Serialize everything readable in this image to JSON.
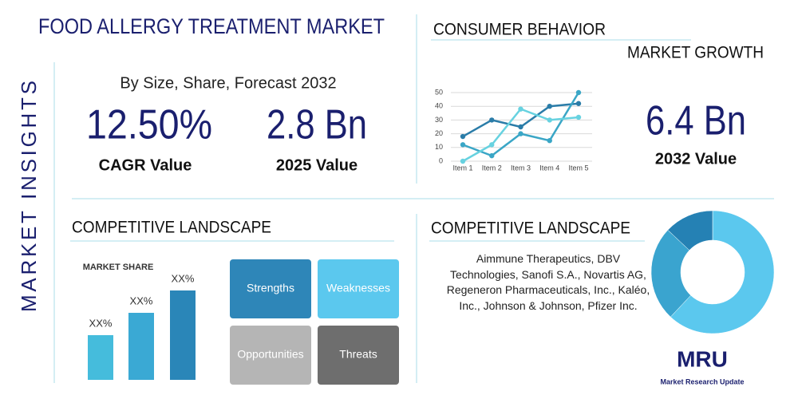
{
  "header": {
    "title": "FOOD ALLERGY TREATMENT MARKET",
    "side_label": "MARKET INSIGHTS",
    "subtitle": "By Size, Share, Forecast 2032"
  },
  "stats": [
    {
      "value": "12.50%",
      "label": "CAGR Value"
    },
    {
      "value": "2.8 Bn",
      "label": "2025 Value"
    },
    {
      "value": "6.4 Bn",
      "label": "2032 Value"
    }
  ],
  "sections": {
    "consumer_behavior": "CONSUMER BEHAVIOR",
    "market_growth": "MARKET GROWTH",
    "competitive_left": "COMPETITIVE LANDSCAPE",
    "competitive_right": "COMPETITIVE LANDSCAPE"
  },
  "swot": [
    "Strengths",
    "Weaknesses",
    "Opportunities",
    "Threats"
  ],
  "companies": "Aimmune Therapeutics, DBV Technologies, Sanofi S.A., Novartis AG, Regeneron Pharmaceuticals, Inc., Kaléo, Inc., Johnson & Johnson, Pfizer Inc.",
  "logo": {
    "mark": "MRU",
    "name": "Market Research Update"
  },
  "chart_data": [
    {
      "type": "line",
      "categories": [
        "Item 1",
        "Item 2",
        "Item 3",
        "Item 4",
        "Item 5"
      ],
      "ylim": [
        0,
        50
      ],
      "yticks": [
        0,
        10,
        20,
        30,
        40,
        50
      ],
      "grid": true,
      "series": [
        {
          "color": "#2a7ca8",
          "values": [
            18,
            30,
            25,
            40,
            42
          ]
        },
        {
          "color": "#3aa6c6",
          "values": [
            12,
            4,
            20,
            15,
            50
          ]
        },
        {
          "color": "#67d2e0",
          "values": [
            0,
            12,
            38,
            30,
            32
          ]
        }
      ]
    },
    {
      "type": "bar",
      "title": "MARKET SHARE",
      "values": [
        20,
        30,
        40
      ],
      "value_labels": [
        "XX%",
        "XX%",
        "XX%"
      ],
      "colors": [
        "#45bcdc",
        "#3aa9d4",
        "#2a86b8"
      ]
    },
    {
      "type": "donut",
      "values": [
        62,
        25,
        13
      ],
      "colors": [
        "#5bc8ee",
        "#3aa4cf",
        "#2581b4"
      ]
    }
  ]
}
